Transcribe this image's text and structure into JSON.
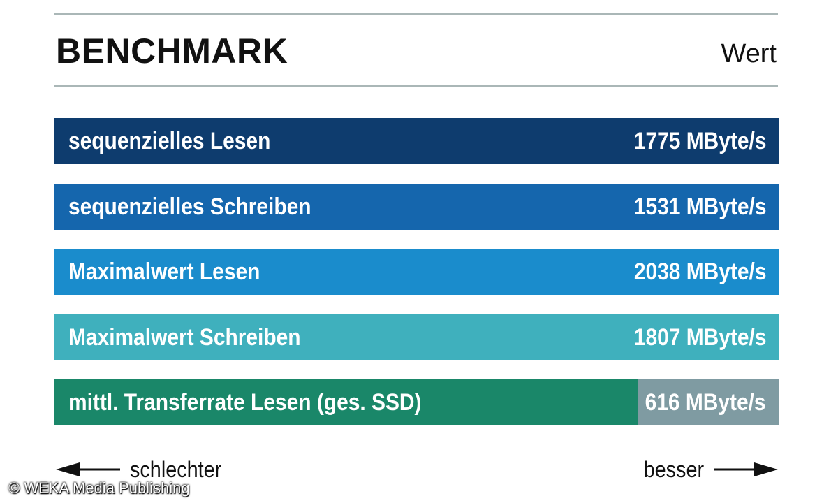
{
  "header": {
    "title": "BENCHMARK",
    "column_label": "Wert"
  },
  "chart_data": {
    "type": "bar",
    "orientation": "horizontal",
    "title": "BENCHMARK",
    "value_column": "Wert",
    "unit": "MByte/s",
    "categories": [
      "sequenzielles Lesen",
      "sequenzielles Schreiben",
      "Maximalwert Lesen",
      "Maximalwert Schreiben",
      "mittl. Transferrate Lesen (ges. SSD)"
    ],
    "values": [
      1775,
      1531,
      2038,
      1807,
      616
    ],
    "value_labels": [
      "1775 MByte/s",
      "1531 MByte/s",
      "2038 MByte/s",
      "1807 MByte/s",
      "616 MByte/s"
    ],
    "fill_fraction": [
      1.0,
      1.0,
      1.0,
      1.0,
      0.805
    ],
    "colors": [
      "#0e3c6e",
      "#1566ad",
      "#1a8ccc",
      "#3fb0bd",
      "#1a8769"
    ],
    "track_color": "#7f9ba2",
    "legend": {
      "worse": "schlechter",
      "better": "besser"
    }
  },
  "footer": {
    "copyright": "© WEKA Media Publishing"
  }
}
